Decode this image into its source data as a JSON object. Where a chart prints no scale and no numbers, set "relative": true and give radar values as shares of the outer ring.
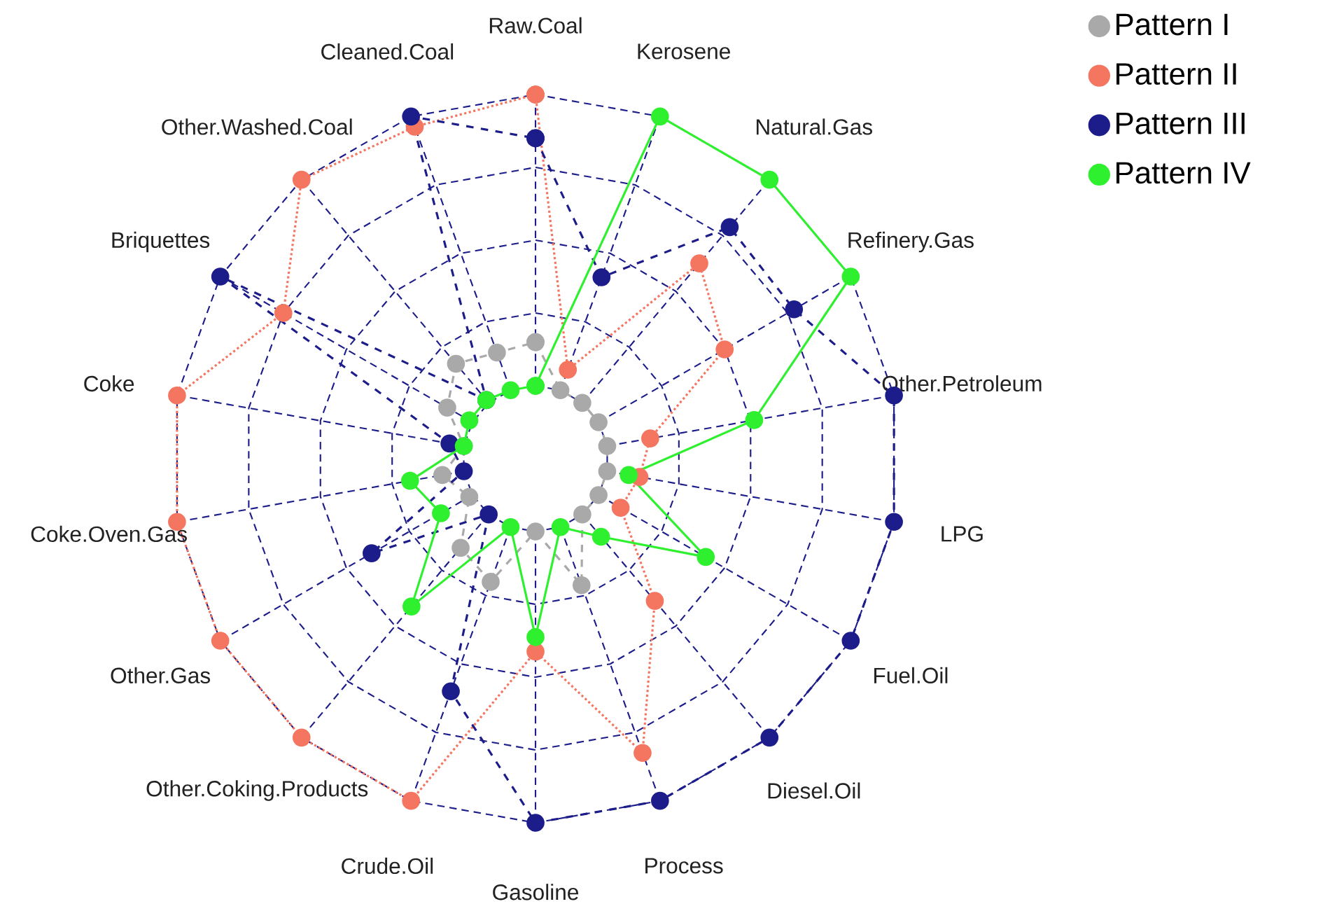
{
  "chart_data": {
    "type": "radar",
    "relative": true,
    "grid": true,
    "legend": "top right",
    "marker": "circle",
    "categories": [
      "Raw.Coal",
      "Kerosene",
      "Natural.Gas",
      "Refinery.Gas",
      "Other.Petroleum",
      "LPG",
      "Fuel.Oil",
      "Diesel.Oil",
      "Process",
      "Gasoline",
      "Crude.Oil",
      "Other.Coking.Products",
      "Other.Gas",
      "Coke.Oven.Gas",
      "Coke",
      "Briquettes",
      "Other.Washed.Coal",
      "Cleaned.Coal"
    ],
    "series": [
      {
        "name": "Pattern I",
        "color": "#a9a9a9",
        "line_style": "dashed",
        "values": [
          0.32,
          0.2,
          0.2,
          0.2,
          0.2,
          0.2,
          0.2,
          0.2,
          0.37,
          0.2,
          0.36,
          0.32,
          0.21,
          0.26,
          0.2,
          0.28,
          0.34,
          0.31
        ]
      },
      {
        "name": "Pattern II",
        "color": "#f47560",
        "line_style": "dotted",
        "values": [
          1.0,
          0.26,
          0.7,
          0.6,
          0.32,
          0.29,
          0.27,
          0.51,
          0.86,
          0.53,
          1.0,
          1.0,
          1.0,
          1.0,
          1.0,
          0.8,
          1.0,
          0.97
        ]
      },
      {
        "name": "Pattern III",
        "color": "#1c1c8a",
        "line_style": "dashed",
        "values": [
          0.88,
          0.53,
          0.83,
          0.82,
          1.0,
          1.0,
          1.0,
          1.0,
          1.0,
          1.0,
          0.68,
          0.2,
          0.52,
          0.2,
          0.24,
          1.0,
          0.21,
          1.0
        ]
      },
      {
        "name": "Pattern IV",
        "color": "#2ef02e",
        "line_style": "solid",
        "values": [
          0.2,
          1.0,
          1.0,
          1.0,
          0.61,
          0.26,
          0.54,
          0.28,
          0.2,
          0.49,
          0.2,
          0.53,
          0.3,
          0.35,
          0.2,
          0.21,
          0.21,
          0.2
        ]
      }
    ]
  }
}
